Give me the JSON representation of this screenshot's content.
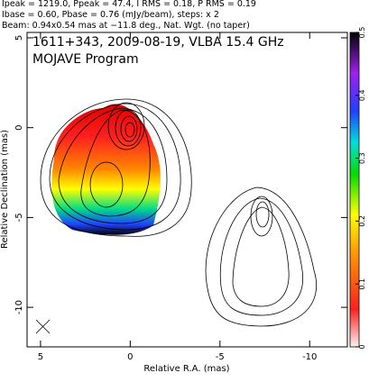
{
  "chart_data": {
    "type": "contour",
    "header": [
      "Ipeak = 1219.0, Ppeak = 47.4, I RMS = 0.18, P RMS = 0.19",
      "Ibase = 0.60, Pbase = 0.76 (mJy/beam), steps: x 2",
      "Beam: 0.94x0.54 mas at −11.8 deg., Nat. Wgt. (no taper)"
    ],
    "annotations": [
      "1611+343, 2009-08-19, VLBA 15.4 GHz",
      "MOJAVE Program"
    ],
    "x_label": "Relative R.A. (mas)",
    "y_label": "Relative Declination (mas)",
    "xlim": [
      5.75,
      -12.1
    ],
    "xticks": [
      5,
      0,
      -5,
      -10
    ],
    "ylim": [
      -12.2,
      5.3
    ],
    "yticks": [
      5,
      0,
      -5,
      -10
    ],
    "colorbar": {
      "lim": [
        0,
        0.5
      ],
      "ticks": [
        0,
        0.1,
        0.2,
        0.3,
        0.4,
        0.5
      ]
    }
  }
}
